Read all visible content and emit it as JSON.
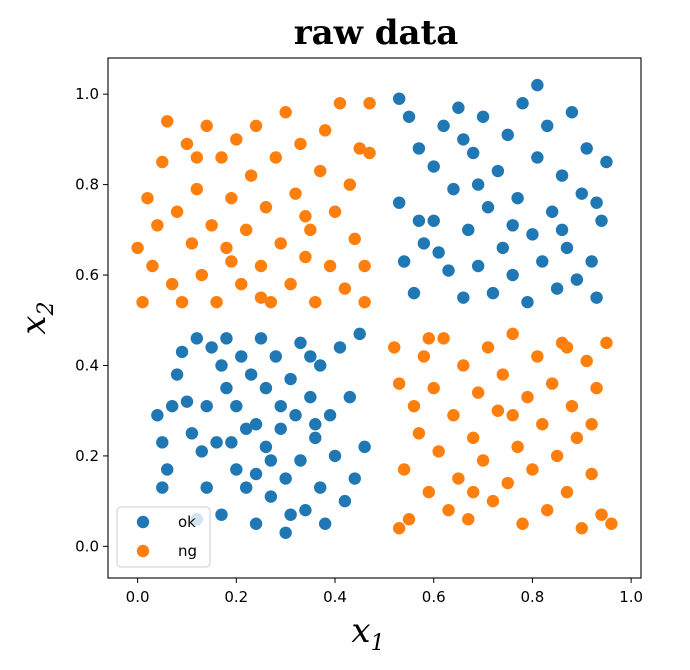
{
  "chart_data": {
    "type": "scatter",
    "title": "raw data",
    "xlabel": "x",
    "xlabel_sub": "1",
    "ylabel": "x",
    "ylabel_sub": "2",
    "xlim": [
      -0.06,
      1.02
    ],
    "ylim": [
      -0.07,
      1.08
    ],
    "xticks": [
      0.0,
      0.2,
      0.4,
      0.6,
      0.8,
      1.0
    ],
    "xtick_labels": [
      "0.0",
      "0.2",
      "0.4",
      "0.6",
      "0.8",
      "1.0"
    ],
    "yticks": [
      0.0,
      0.2,
      0.4,
      0.6,
      0.8,
      1.0
    ],
    "ytick_labels": [
      "0.0",
      "0.2",
      "0.4",
      "0.6",
      "0.8",
      "1.0"
    ],
    "grid": false,
    "legend_position": "lower-left",
    "series": [
      {
        "name": "ok",
        "color": "#1f77b4",
        "points": [
          [
            0.04,
            0.29
          ],
          [
            0.07,
            0.31
          ],
          [
            0.05,
            0.23
          ],
          [
            0.06,
            0.17
          ],
          [
            0.05,
            0.13
          ],
          [
            0.08,
            0.38
          ],
          [
            0.09,
            0.43
          ],
          [
            0.1,
            0.32
          ],
          [
            0.11,
            0.25
          ],
          [
            0.12,
            0.46
          ],
          [
            0.13,
            0.21
          ],
          [
            0.14,
            0.13
          ],
          [
            0.12,
            0.06
          ],
          [
            0.14,
            0.31
          ],
          [
            0.15,
            0.44
          ],
          [
            0.16,
            0.23
          ],
          [
            0.17,
            0.07
          ],
          [
            0.17,
            0.4
          ],
          [
            0.18,
            0.46
          ],
          [
            0.19,
            0.23
          ],
          [
            0.2,
            0.17
          ],
          [
            0.2,
            0.31
          ],
          [
            0.21,
            0.42
          ],
          [
            0.22,
            0.13
          ],
          [
            0.23,
            0.38
          ],
          [
            0.24,
            0.27
          ],
          [
            0.24,
            0.05
          ],
          [
            0.25,
            0.46
          ],
          [
            0.26,
            0.35
          ],
          [
            0.27,
            0.19
          ],
          [
            0.27,
            0.11
          ],
          [
            0.28,
            0.42
          ],
          [
            0.29,
            0.26
          ],
          [
            0.3,
            0.03
          ],
          [
            0.3,
            0.15
          ],
          [
            0.31,
            0.37
          ],
          [
            0.32,
            0.29
          ],
          [
            0.33,
            0.19
          ],
          [
            0.33,
            0.45
          ],
          [
            0.34,
            0.08
          ],
          [
            0.35,
            0.33
          ],
          [
            0.36,
            0.24
          ],
          [
            0.37,
            0.13
          ],
          [
            0.37,
            0.4
          ],
          [
            0.38,
            0.05
          ],
          [
            0.39,
            0.29
          ],
          [
            0.4,
            0.2
          ],
          [
            0.41,
            0.44
          ],
          [
            0.42,
            0.1
          ],
          [
            0.43,
            0.33
          ],
          [
            0.44,
            0.15
          ],
          [
            0.45,
            0.47
          ],
          [
            0.46,
            0.22
          ],
          [
            0.22,
            0.26
          ],
          [
            0.18,
            0.35
          ],
          [
            0.26,
            0.22
          ],
          [
            0.31,
            0.07
          ],
          [
            0.35,
            0.42
          ],
          [
            0.29,
            0.31
          ],
          [
            0.24,
            0.16
          ],
          [
            0.36,
            0.27
          ],
          [
            0.53,
            0.99
          ],
          [
            0.55,
            0.95
          ],
          [
            0.57,
            0.88
          ],
          [
            0.53,
            0.76
          ],
          [
            0.54,
            0.63
          ],
          [
            0.56,
            0.56
          ],
          [
            0.58,
            0.67
          ],
          [
            0.6,
            0.72
          ],
          [
            0.6,
            0.84
          ],
          [
            0.62,
            0.93
          ],
          [
            0.63,
            0.61
          ],
          [
            0.64,
            0.79
          ],
          [
            0.65,
            0.97
          ],
          [
            0.66,
            0.55
          ],
          [
            0.67,
            0.7
          ],
          [
            0.68,
            0.87
          ],
          [
            0.69,
            0.62
          ],
          [
            0.7,
            0.95
          ],
          [
            0.71,
            0.75
          ],
          [
            0.72,
            0.56
          ],
          [
            0.73,
            0.83
          ],
          [
            0.74,
            0.66
          ],
          [
            0.75,
            0.91
          ],
          [
            0.76,
            0.6
          ],
          [
            0.77,
            0.77
          ],
          [
            0.78,
            0.98
          ],
          [
            0.79,
            0.54
          ],
          [
            0.8,
            0.69
          ],
          [
            0.81,
            0.86
          ],
          [
            0.82,
            0.63
          ],
          [
            0.83,
            0.93
          ],
          [
            0.84,
            0.74
          ],
          [
            0.85,
            0.57
          ],
          [
            0.86,
            0.82
          ],
          [
            0.87,
            0.66
          ],
          [
            0.88,
            0.96
          ],
          [
            0.89,
            0.59
          ],
          [
            0.9,
            0.78
          ],
          [
            0.91,
            0.88
          ],
          [
            0.92,
            0.63
          ],
          [
            0.93,
            0.55
          ],
          [
            0.94,
            0.72
          ],
          [
            0.95,
            0.85
          ],
          [
            0.93,
            0.76
          ],
          [
            0.81,
            1.02
          ],
          [
            0.69,
            0.8
          ],
          [
            0.61,
            0.65
          ],
          [
            0.76,
            0.71
          ],
          [
            0.86,
            0.7
          ],
          [
            0.66,
            0.9
          ],
          [
            0.57,
            0.72
          ]
        ]
      },
      {
        "name": "ng",
        "color": "#ff7f0e",
        "points": [
          [
            0.0,
            0.66
          ],
          [
            0.01,
            0.54
          ],
          [
            0.02,
            0.77
          ],
          [
            0.03,
            0.62
          ],
          [
            0.04,
            0.71
          ],
          [
            0.05,
            0.85
          ],
          [
            0.06,
            0.94
          ],
          [
            0.07,
            0.58
          ],
          [
            0.08,
            0.74
          ],
          [
            0.09,
            0.54
          ],
          [
            0.1,
            0.89
          ],
          [
            0.11,
            0.67
          ],
          [
            0.12,
            0.79
          ],
          [
            0.13,
            0.6
          ],
          [
            0.14,
            0.93
          ],
          [
            0.15,
            0.71
          ],
          [
            0.16,
            0.54
          ],
          [
            0.17,
            0.86
          ],
          [
            0.18,
            0.66
          ],
          [
            0.19,
            0.77
          ],
          [
            0.2,
            0.9
          ],
          [
            0.21,
            0.58
          ],
          [
            0.22,
            0.7
          ],
          [
            0.23,
            0.82
          ],
          [
            0.24,
            0.93
          ],
          [
            0.25,
            0.62
          ],
          [
            0.26,
            0.75
          ],
          [
            0.27,
            0.54
          ],
          [
            0.28,
            0.86
          ],
          [
            0.29,
            0.67
          ],
          [
            0.3,
            0.96
          ],
          [
            0.31,
            0.58
          ],
          [
            0.32,
            0.78
          ],
          [
            0.33,
            0.89
          ],
          [
            0.34,
            0.64
          ],
          [
            0.35,
            0.7
          ],
          [
            0.36,
            0.54
          ],
          [
            0.37,
            0.83
          ],
          [
            0.38,
            0.92
          ],
          [
            0.39,
            0.62
          ],
          [
            0.4,
            0.74
          ],
          [
            0.41,
            0.98
          ],
          [
            0.42,
            0.57
          ],
          [
            0.43,
            0.8
          ],
          [
            0.44,
            0.68
          ],
          [
            0.45,
            0.88
          ],
          [
            0.46,
            0.54
          ],
          [
            0.47,
            0.98
          ],
          [
            0.47,
            0.87
          ],
          [
            0.46,
            0.62
          ],
          [
            0.12,
            0.86
          ],
          [
            0.25,
            0.55
          ],
          [
            0.34,
            0.73
          ],
          [
            0.19,
            0.63
          ],
          [
            0.52,
            0.44
          ],
          [
            0.53,
            0.36
          ],
          [
            0.54,
            0.17
          ],
          [
            0.55,
            0.06
          ],
          [
            0.56,
            0.31
          ],
          [
            0.57,
            0.25
          ],
          [
            0.58,
            0.42
          ],
          [
            0.59,
            0.12
          ],
          [
            0.6,
            0.35
          ],
          [
            0.61,
            0.21
          ],
          [
            0.62,
            0.46
          ],
          [
            0.63,
            0.08
          ],
          [
            0.64,
            0.29
          ],
          [
            0.65,
            0.15
          ],
          [
            0.66,
            0.4
          ],
          [
            0.67,
            0.06
          ],
          [
            0.68,
            0.24
          ],
          [
            0.69,
            0.34
          ],
          [
            0.7,
            0.19
          ],
          [
            0.71,
            0.44
          ],
          [
            0.72,
            0.1
          ],
          [
            0.73,
            0.3
          ],
          [
            0.74,
            0.38
          ],
          [
            0.75,
            0.14
          ],
          [
            0.76,
            0.47
          ],
          [
            0.77,
            0.22
          ],
          [
            0.78,
            0.05
          ],
          [
            0.79,
            0.33
          ],
          [
            0.8,
            0.17
          ],
          [
            0.81,
            0.42
          ],
          [
            0.82,
            0.27
          ],
          [
            0.83,
            0.08
          ],
          [
            0.84,
            0.36
          ],
          [
            0.85,
            0.2
          ],
          [
            0.86,
            0.45
          ],
          [
            0.87,
            0.12
          ],
          [
            0.88,
            0.31
          ],
          [
            0.89,
            0.24
          ],
          [
            0.9,
            0.04
          ],
          [
            0.91,
            0.41
          ],
          [
            0.92,
            0.16
          ],
          [
            0.93,
            0.35
          ],
          [
            0.94,
            0.07
          ],
          [
            0.95,
            0.45
          ],
          [
            0.96,
            0.05
          ],
          [
            0.53,
            0.04
          ],
          [
            0.59,
            0.46
          ],
          [
            0.68,
            0.12
          ],
          [
            0.76,
            0.29
          ],
          [
            0.87,
            0.44
          ],
          [
            0.92,
            0.27
          ]
        ]
      }
    ]
  }
}
